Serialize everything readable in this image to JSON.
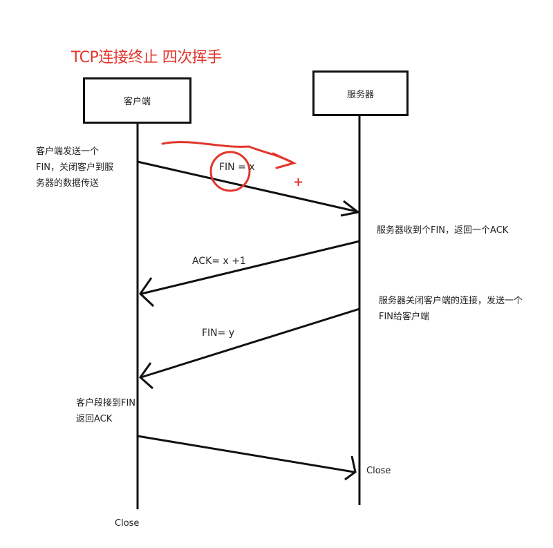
{
  "title": "TCP连接终止 四次挥手",
  "participants": {
    "client": "客户端",
    "server": "服务器"
  },
  "notes": {
    "client_send": [
      "客户端发送一个",
      "FIN，关闭客户到服",
      "务器的数据传送"
    ],
    "server_receive": "服务器收到个FIN，返回一个ACK",
    "server_close": [
      "服务器关闭客户端的连接，发送一个",
      "FIN给客户端"
    ],
    "client_receive": [
      "客户段接到FIN",
      "返回ACK"
    ]
  },
  "messages": {
    "fin_x": "FIN = x",
    "ack": "ACK=  x  +1",
    "fin_y": "FIN= y"
  },
  "closes": {
    "server": "Close",
    "client": "Close"
  },
  "colors": {
    "annotation_red": "#e2352b",
    "line": "#111111"
  }
}
